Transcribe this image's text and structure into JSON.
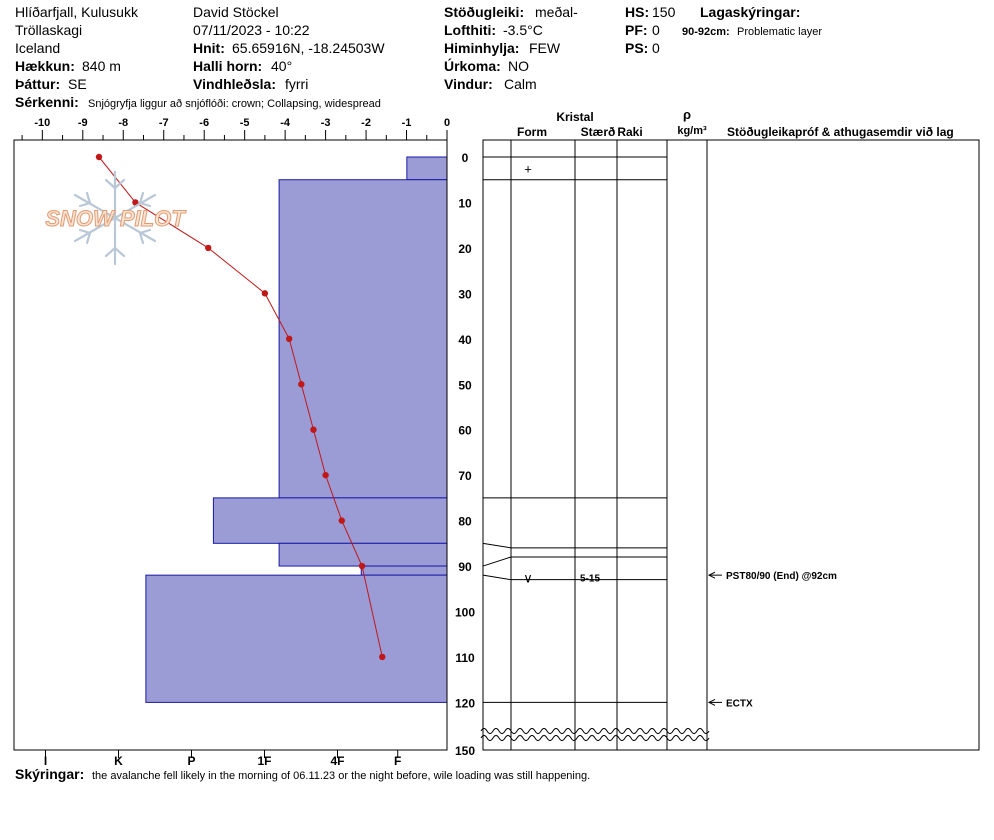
{
  "header": {
    "col1": {
      "location": "Hlíðarfjall, Kulusukk",
      "range": "Tröllaskagi",
      "country": "Iceland",
      "elevation_label": "Hækkun:",
      "elevation": "840 m",
      "aspect_label": "Þáttur:",
      "aspect": "SE"
    },
    "col2": {
      "observer": "David Stöckel",
      "datetime": "07/11/2023 - 10:22",
      "coords_label": "Hnit:",
      "coords": "65.65916N, -18.24503W",
      "slope_label": "Halli horn:",
      "slope": "40°",
      "wind_loading_label": "Vindhleðsla:",
      "wind_loading": "fyrri"
    },
    "col3": {
      "stability_label": "Stöðugleiki:",
      "stability": "meðal-",
      "air_temp_label": "Lofthiti:",
      "air_temp": "-3.5°C",
      "sky_label": "Himinhylja:",
      "sky": "FEW",
      "precip_label": "Úrkoma:",
      "precip": "NO",
      "wind_label": "Vindur:",
      "wind": "Calm"
    },
    "col4": {
      "hs_label": "HS:",
      "hs": "150",
      "pf_label": "PF:",
      "pf": "0",
      "ps_label": "PS:",
      "ps": "0"
    },
    "layer_notes": {
      "title": "Lagaskýringar:",
      "range": "90-92cm:",
      "text": "Problematic layer"
    },
    "features_label": "Sérkenni:",
    "features": "Snjógryfja liggur að snjóflóði: crown; Collapsing, widespread"
  },
  "footer": {
    "comments_label": "Skýringar:",
    "comments": "the avalanche fell likely in the morning of 06.11.23 or the night before, wile loading was still happening."
  },
  "logo": {
    "text": "SNOW PILOT"
  },
  "chart_data": {
    "type": "bar",
    "temperature_axis": {
      "ticks": [
        "-10",
        "-9",
        "-8",
        "-7",
        "-6",
        "-5",
        "-4",
        "-3",
        "-2",
        "-1",
        "0"
      ],
      "range": [
        -10.7,
        0
      ]
    },
    "hardness_axis": {
      "ticks": [
        "I",
        "K",
        "P",
        "1F",
        "4F",
        "F"
      ]
    },
    "depth_axis": {
      "ticks": [
        "0",
        "10",
        "20",
        "30",
        "40",
        "50",
        "60",
        "70",
        "80",
        "90",
        "100",
        "110",
        "120",
        "150"
      ],
      "range_cm": [
        0,
        150
      ],
      "break_cm": [
        120,
        150
      ]
    },
    "hardness_layers": [
      {
        "top": 0,
        "bottom": 5,
        "hardness_units": 1.1
      },
      {
        "top": 5,
        "bottom": 75,
        "hardness_units": 4.6
      },
      {
        "top": 75,
        "bottom": 85,
        "hardness_units": 6.4
      },
      {
        "top": 85,
        "bottom": 90,
        "hardness_units": 4.6
      },
      {
        "top": 90,
        "bottom": 92,
        "hardness_units": 2.35
      },
      {
        "top": 92,
        "bottom": 120,
        "hardness_units": 8.25
      }
    ],
    "temperature_profile": [
      {
        "depth": 0,
        "temp": -8.6
      },
      {
        "depth": 10,
        "temp": -7.7
      },
      {
        "depth": 20,
        "temp": -5.9
      },
      {
        "depth": 30,
        "temp": -4.5
      },
      {
        "depth": 40,
        "temp": -3.9
      },
      {
        "depth": 50,
        "temp": -3.6
      },
      {
        "depth": 60,
        "temp": -3.3
      },
      {
        "depth": 70,
        "temp": -3.0
      },
      {
        "depth": 80,
        "temp": -2.6
      },
      {
        "depth": 90,
        "temp": -2.1
      },
      {
        "depth": 110,
        "temp": -1.6
      }
    ],
    "layer_boundaries_cm": [
      0,
      5,
      75,
      85,
      90,
      92,
      120
    ],
    "grain_marks": [
      {
        "depth_top": 0,
        "depth_bottom": 5,
        "form": "+",
        "size": ""
      },
      {
        "depth_top": 90,
        "depth_bottom": 92,
        "form": "∨",
        "size": "5-15"
      }
    ],
    "table_headers": {
      "crystal": "Kristal",
      "form": "Form",
      "size": "Stærð",
      "moisture": "Raki",
      "density_symbol": "ρ",
      "density_unit": "kg/m³",
      "tests": "Stöðugleikapróf & athugasemdir við lag"
    },
    "tests": [
      {
        "depth": 92,
        "text": "PST80/90 (End) @92cm"
      },
      {
        "depth": 120,
        "text": "ECTX"
      }
    ],
    "colors": {
      "bar_fill": "#9b9bd6",
      "bar_stroke": "#1a1aa6",
      "temp_line": "#c01818"
    }
  }
}
